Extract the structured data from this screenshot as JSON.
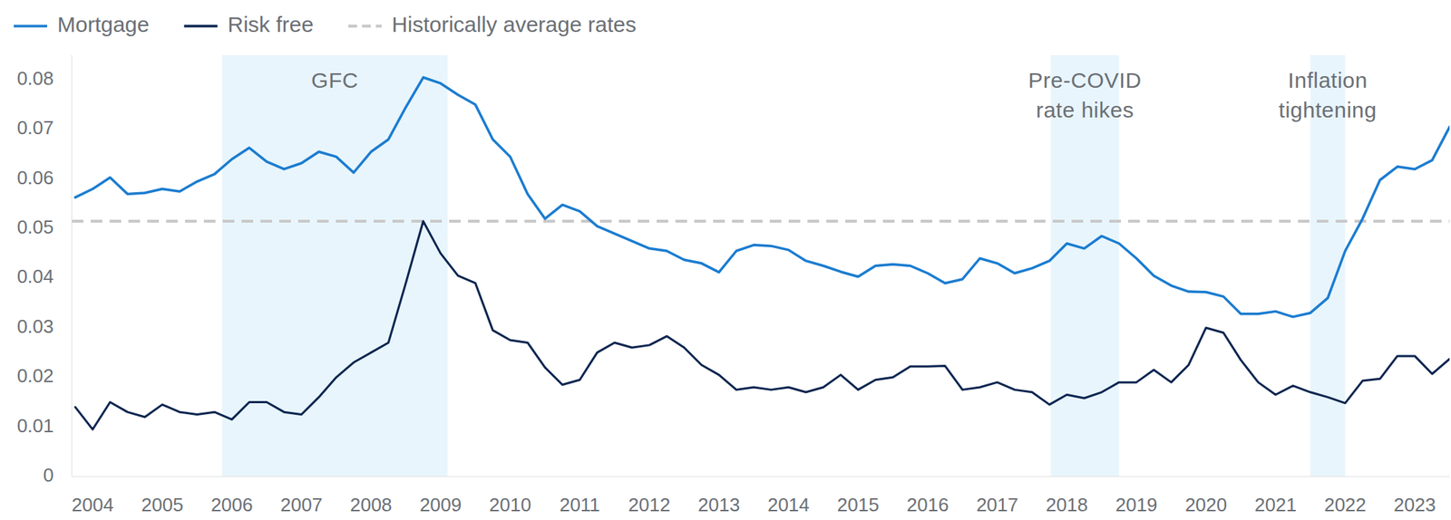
{
  "chart_data": {
    "type": "line",
    "x": [
      2003.75,
      2004.0,
      2004.25,
      2004.5,
      2004.75,
      2005.0,
      2005.25,
      2005.5,
      2005.75,
      2006.0,
      2006.25,
      2006.5,
      2006.75,
      2007.0,
      2007.25,
      2007.5,
      2007.75,
      2008.0,
      2008.25,
      2008.5,
      2008.75,
      2009.0,
      2009.25,
      2009.5,
      2009.75,
      2010.0,
      2010.25,
      2010.5,
      2010.75,
      2011.0,
      2011.25,
      2011.5,
      2011.75,
      2012.0,
      2012.25,
      2012.5,
      2012.75,
      2013.0,
      2013.25,
      2013.5,
      2013.75,
      2014.0,
      2014.25,
      2014.5,
      2014.75,
      2015.0,
      2015.25,
      2015.5,
      2015.75,
      2016.0,
      2016.25,
      2016.5,
      2016.75,
      2017.0,
      2017.25,
      2017.5,
      2017.75,
      2018.0,
      2018.25,
      2018.5,
      2018.75,
      2019.0,
      2019.25,
      2019.5,
      2019.75,
      2020.0,
      2020.25,
      2020.5,
      2020.75,
      2021.0,
      2021.25,
      2021.5,
      2021.75,
      2022.0,
      2022.25,
      2022.5,
      2022.75,
      2023.0,
      2023.25,
      2023.5
    ],
    "series": [
      {
        "name": "Mortgage",
        "color": "#1b7cd0",
        "line_style": "solid",
        "values": [
          0.0563,
          0.058,
          0.0603,
          0.057,
          0.0572,
          0.058,
          0.0575,
          0.0595,
          0.061,
          0.064,
          0.0663,
          0.0635,
          0.062,
          0.0632,
          0.0655,
          0.0645,
          0.0613,
          0.0655,
          0.068,
          0.0745,
          0.0805,
          0.0793,
          0.077,
          0.075,
          0.068,
          0.0645,
          0.057,
          0.052,
          0.0548,
          0.0535,
          0.0505,
          0.049,
          0.0475,
          0.046,
          0.0455,
          0.0437,
          0.043,
          0.0412,
          0.0455,
          0.0467,
          0.0465,
          0.0457,
          0.0435,
          0.0425,
          0.0413,
          0.0403,
          0.0425,
          0.0428,
          0.0425,
          0.041,
          0.039,
          0.0398,
          0.044,
          0.043,
          0.041,
          0.042,
          0.0435,
          0.047,
          0.046,
          0.0485,
          0.047,
          0.044,
          0.0405,
          0.0385,
          0.0373,
          0.0372,
          0.0363,
          0.0328,
          0.0328,
          0.0333,
          0.0322,
          0.033,
          0.036,
          0.0455,
          0.052,
          0.0598,
          0.0625,
          0.062,
          0.0638,
          0.0705
        ]
      },
      {
        "name": "Risk free",
        "color": "#0b2550",
        "line_style": "solid",
        "values": [
          0.014,
          0.0095,
          0.015,
          0.013,
          0.012,
          0.0145,
          0.013,
          0.0125,
          0.013,
          0.0115,
          0.015,
          0.015,
          0.013,
          0.0125,
          0.016,
          0.02,
          0.023,
          0.025,
          0.027,
          0.039,
          0.0515,
          0.045,
          0.0405,
          0.039,
          0.0295,
          0.0275,
          0.027,
          0.022,
          0.0185,
          0.0195,
          0.025,
          0.027,
          0.026,
          0.0265,
          0.0283,
          0.026,
          0.0225,
          0.0205,
          0.0175,
          0.018,
          0.0175,
          0.018,
          0.017,
          0.018,
          0.0205,
          0.0175,
          0.0195,
          0.02,
          0.0222,
          0.0222,
          0.0223,
          0.0175,
          0.018,
          0.019,
          0.0175,
          0.017,
          0.0145,
          0.0165,
          0.0158,
          0.017,
          0.019,
          0.019,
          0.0215,
          0.019,
          0.0225,
          0.03,
          0.029,
          0.0235,
          0.019,
          0.0165,
          0.0183,
          0.017,
          0.016,
          0.0148,
          0.0193,
          0.0197,
          0.0243,
          0.0243,
          0.0207,
          0.0237
        ]
      }
    ],
    "reference_lines": [
      {
        "name": "Historically average rates",
        "value": 0.0515,
        "color": "#c9c9c9",
        "line_style": "dashed"
      }
    ],
    "bands": [
      {
        "label": [
          "GFC"
        ],
        "x0": 2005.86,
        "x1": 2009.1,
        "color": "#e8f5fc"
      },
      {
        "label": [
          "Pre-COVID",
          "rate hikes"
        ],
        "x0": 2017.77,
        "x1": 2018.75,
        "color": "#e8f5fc"
      },
      {
        "label": [
          "Inflation",
          "tightening"
        ],
        "x0": 2021.5,
        "x1": 2022.0,
        "color": "#e8f5fc"
      }
    ],
    "xlim": [
      2003.7,
      2023.5
    ],
    "xticks": [
      2004,
      2005,
      2006,
      2007,
      2008,
      2009,
      2010,
      2011,
      2012,
      2013,
      2014,
      2015,
      2016,
      2017,
      2018,
      2019,
      2020,
      2021,
      2022,
      2023
    ],
    "ylim": [
      0,
      0.085
    ],
    "yticks": [
      0,
      0.01,
      0.02,
      0.03,
      0.04,
      0.05,
      0.06,
      0.07,
      0.08
    ],
    "grid": false,
    "legend": "top-left"
  }
}
